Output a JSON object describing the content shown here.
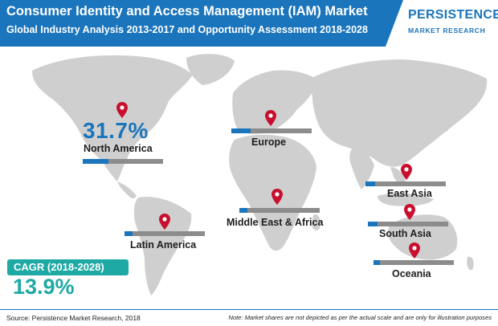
{
  "header": {
    "title": "Consumer Identity and Access Management (IAM) Market",
    "subtitle": "Global Industry Analysis 2013-2017 and Opportunity Assessment 2018-2028"
  },
  "logo": {
    "main": "PERSISTENCE",
    "sub": "MARKET RESEARCH"
  },
  "regions": {
    "north_america": {
      "name": "North America",
      "share": "31.7%",
      "bar_fill": 0.32
    },
    "europe": {
      "name": "Europe",
      "bar_fill": 0.24
    },
    "east_asia": {
      "name": "East Asia",
      "bar_fill": 0.12
    },
    "south_asia": {
      "name": "South Asia",
      "bar_fill": 0.12
    },
    "oceania": {
      "name": "Oceania",
      "bar_fill": 0.08
    },
    "middle_east_africa": {
      "name": "Middle East & Africa",
      "bar_fill": 0.1
    },
    "latin_america": {
      "name": "Latin America",
      "bar_fill": 0.1
    }
  },
  "cagr": {
    "label": "CAGR (2018-2028)",
    "value": "13.9%"
  },
  "footer": {
    "source": "Source: Persistence Market Research, 2018",
    "note": "Note: Market shares are not depicted as per the actual scale and are only for illustration purposes"
  },
  "colors": {
    "brand_blue": "#1b75bc",
    "teal": "#1fa9a5",
    "map_gray": "#cfcfcf",
    "pin_red": "#c8102e",
    "bar_gray": "#8c8c8c"
  }
}
